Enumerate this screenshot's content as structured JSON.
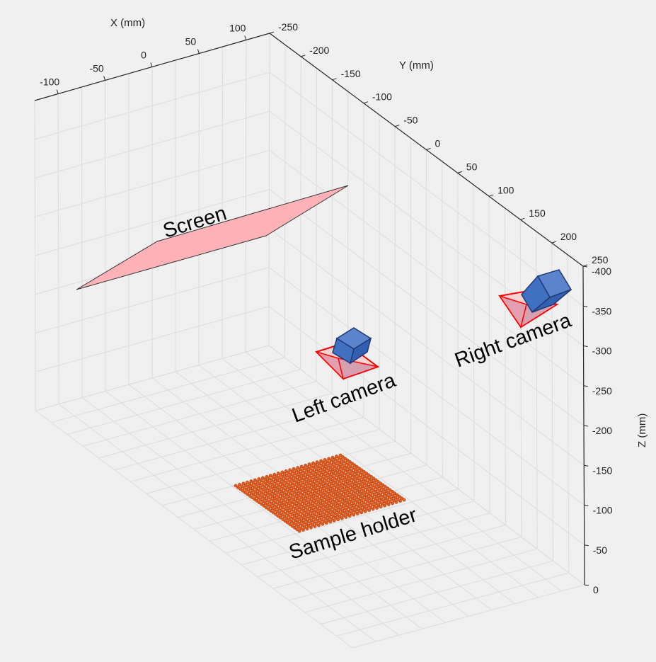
{
  "chart_data": {
    "type": "scatter",
    "title": "",
    "view": "3d-perspective",
    "grid": true,
    "axes": {
      "x": {
        "label": "X (mm)",
        "ticks": [
          -100,
          -50,
          0,
          50,
          100
        ],
        "range": [
          -125,
          125
        ]
      },
      "y": {
        "label": "Y (mm)",
        "ticks": [
          -250,
          -200,
          -150,
          -100,
          -50,
          0,
          50,
          100,
          150,
          200,
          250
        ],
        "range": [
          -250,
          250
        ]
      },
      "z": {
        "label": "Z (mm)",
        "ticks": [
          0,
          -50,
          -100,
          -150,
          -200,
          -250,
          -300,
          -350,
          -400
        ],
        "range": [
          0,
          -400
        ]
      }
    },
    "objects": [
      {
        "name": "Screen",
        "kind": "plane",
        "color": "#ffb3b8"
      },
      {
        "name": "Left camera",
        "kind": "camera",
        "color": "#4472c4"
      },
      {
        "name": "Right camera",
        "kind": "camera",
        "color": "#4472c4"
      },
      {
        "name": "Sample holder",
        "kind": "point-grid",
        "color": "#e35a1a"
      }
    ]
  },
  "annotations": {
    "screen": "Screen",
    "left_camera": "Left camera",
    "right_camera": "Right camera",
    "sample_holder": "Sample holder"
  }
}
